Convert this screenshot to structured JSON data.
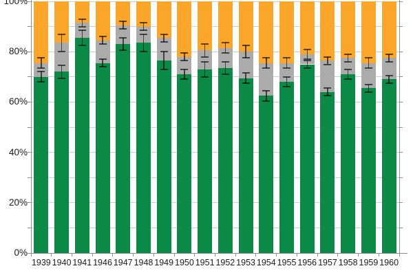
{
  "chart": {
    "colors": {
      "green": "#0a8a46",
      "gray": "#ababab",
      "orange": "#f9a62b",
      "gridline": "#cccccc",
      "axis": "#8c8c8c",
      "error_bar": "rgba(0,0,0,0.62)",
      "text": "#1a1a1a",
      "background": "#ffffff"
    }
  },
  "chart_data": {
    "type": "bar",
    "stacked": true,
    "title": "",
    "legend": "none",
    "grid": "horizontal every 10%",
    "categories": [
      "1939",
      "1940",
      "1941",
      "1946",
      "1947",
      "1948",
      "1949",
      "1950",
      "1951",
      "1952",
      "1953",
      "1954",
      "1955",
      "1956",
      "1957",
      "1958",
      "1959",
      "1960"
    ],
    "series": [
      {
        "name": "bottom-green-segment",
        "color": "#0a8a46",
        "values": [
          70,
          72,
          85.5,
          75.5,
          83,
          83.5,
          76.5,
          71,
          73,
          73.5,
          69.5,
          62.5,
          68,
          75,
          64,
          71,
          65.5,
          69
        ]
      },
      {
        "name": "middle-gray-segment",
        "color": "#ababab",
        "values": [
          5.5,
          11.5,
          6,
          9,
          7.5,
          6.5,
          9,
          7,
          7.5,
          8,
          10.5,
          13,
          7.5,
          4,
          12.5,
          6.5,
          10,
          8.5
        ]
      },
      {
        "name": "top-orange-segment",
        "color": "#f9a62b",
        "values": [
          24.5,
          16.5,
          8.5,
          15.5,
          9.5,
          10,
          14.5,
          22,
          19.5,
          18.5,
          20,
          24.5,
          24.5,
          21,
          23.5,
          22.5,
          24.5,
          22.5
        ]
      }
    ],
    "error_bars": [
      {
        "on": "green-top",
        "centers": [
          70,
          72,
          85.5,
          75.5,
          83,
          83.5,
          76.5,
          71,
          73,
          73.5,
          69.5,
          62.5,
          68,
          75,
          64,
          71,
          65.5,
          69
        ],
        "half_widths": [
          2,
          2.5,
          3,
          1.5,
          2.5,
          3.5,
          3.5,
          2,
          3,
          2.5,
          2,
          2,
          2,
          1.5,
          1.5,
          2,
          1.5,
          1.5
        ]
      },
      {
        "on": "gray-top",
        "centers": [
          75.5,
          83.5,
          91.5,
          84.5,
          90.5,
          90,
          85.5,
          78,
          80.5,
          81.5,
          80,
          75.5,
          75.5,
          79,
          76.5,
          77.5,
          75.5,
          77.5
        ],
        "half_widths": [
          2,
          3.5,
          1.5,
          1.5,
          1.5,
          1.5,
          1.5,
          1.5,
          2.5,
          2,
          2.5,
          2,
          2,
          2,
          1.5,
          1.5,
          2,
          1.5
        ]
      }
    ],
    "y_axis": {
      "min": 0,
      "max": 100,
      "unit": "%",
      "major_tick_labels": [
        "0%",
        "20%",
        "40%",
        "60%",
        "80%",
        "100%"
      ],
      "major_tick_pcts": [
        0,
        20,
        40,
        60,
        80,
        100
      ],
      "minor_tick_step": 10
    }
  }
}
